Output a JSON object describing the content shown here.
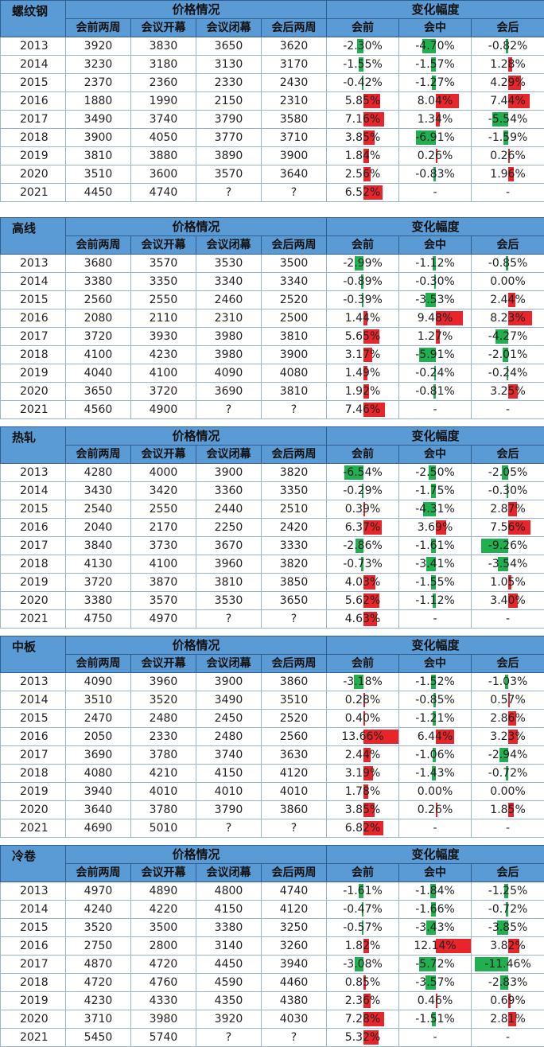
{
  "header_price": "价格情况",
  "header_change": "变化幅度",
  "cols": [
    "会前两周",
    "会议开幕",
    "会议闭幕",
    "会后两周",
    "会前",
    "会中",
    "会后"
  ],
  "colors": {
    "header": "#5b9bd5",
    "positive": "#e8252a",
    "negative": "#21b04f"
  },
  "tables": [
    {
      "name": "螺纹钢",
      "rows": [
        {
          "year": "2013",
          "p": [
            "3920",
            "3830",
            "3650",
            "3620"
          ],
          "c": [
            "-2.30%",
            "-4.70%",
            "-0.82%"
          ],
          "v": [
            -2.3,
            -4.7,
            -0.82
          ]
        },
        {
          "year": "2014",
          "p": [
            "3230",
            "3180",
            "3130",
            "3170"
          ],
          "c": [
            "-1.55%",
            "-1.57%",
            "1.28%"
          ],
          "v": [
            -1.55,
            -1.57,
            1.28
          ]
        },
        {
          "year": "2015",
          "p": [
            "2370",
            "2360",
            "2330",
            "2430"
          ],
          "c": [
            "-0.42%",
            "-1.27%",
            "4.29%"
          ],
          "v": [
            -0.42,
            -1.27,
            4.29
          ]
        },
        {
          "year": "2016",
          "p": [
            "1880",
            "1990",
            "2150",
            "2310"
          ],
          "c": [
            "5.85%",
            "8.04%",
            "7.44%"
          ],
          "v": [
            5.85,
            8.04,
            7.44
          ]
        },
        {
          "year": "2017",
          "p": [
            "3490",
            "3740",
            "3790",
            "3580"
          ],
          "c": [
            "7.16%",
            "1.34%",
            "-5.54%"
          ],
          "v": [
            7.16,
            1.34,
            -5.54
          ]
        },
        {
          "year": "2018",
          "p": [
            "3900",
            "4050",
            "3770",
            "3710"
          ],
          "c": [
            "3.85%",
            "-6.91%",
            "-1.59%"
          ],
          "v": [
            3.85,
            -6.91,
            -1.59
          ]
        },
        {
          "year": "2019",
          "p": [
            "3810",
            "3880",
            "3890",
            "3900"
          ],
          "c": [
            "1.84%",
            "0.26%",
            "0.26%"
          ],
          "v": [
            1.84,
            0.26,
            0.26
          ]
        },
        {
          "year": "2020",
          "p": [
            "3510",
            "3600",
            "3570",
            "3640"
          ],
          "c": [
            "2.56%",
            "-0.83%",
            "1.96%"
          ],
          "v": [
            2.56,
            -0.83,
            1.96
          ]
        },
        {
          "year": "2021",
          "p": [
            "4450",
            "4740",
            "?",
            "?"
          ],
          "c": [
            "6.52%",
            "-",
            "-"
          ],
          "v": [
            6.52,
            null,
            null
          ]
        }
      ]
    },
    {
      "name": "高线",
      "rows": [
        {
          "year": "2013",
          "p": [
            "3680",
            "3570",
            "3530",
            "3500"
          ],
          "c": [
            "-2.99%",
            "-1.12%",
            "-0.85%"
          ],
          "v": [
            -2.99,
            -1.12,
            -0.85
          ]
        },
        {
          "year": "2014",
          "p": [
            "3380",
            "3350",
            "3340",
            "3340"
          ],
          "c": [
            "-0.89%",
            "-0.30%",
            "0.00%"
          ],
          "v": [
            -0.89,
            -0.3,
            0.0
          ]
        },
        {
          "year": "2015",
          "p": [
            "2560",
            "2550",
            "2460",
            "2520"
          ],
          "c": [
            "-0.39%",
            "-3.53%",
            "2.44%"
          ],
          "v": [
            -0.39,
            -3.53,
            2.44
          ]
        },
        {
          "year": "2016",
          "p": [
            "2080",
            "2110",
            "2310",
            "2500"
          ],
          "c": [
            "1.44%",
            "9.48%",
            "8.23%"
          ],
          "v": [
            1.44,
            9.48,
            8.23
          ]
        },
        {
          "year": "2017",
          "p": [
            "3720",
            "3930",
            "3980",
            "3810"
          ],
          "c": [
            "5.65%",
            "1.27%",
            "-4.27%"
          ],
          "v": [
            5.65,
            1.27,
            -4.27
          ]
        },
        {
          "year": "2018",
          "p": [
            "4100",
            "4230",
            "3980",
            "3900"
          ],
          "c": [
            "3.17%",
            "-5.91%",
            "-2.01%"
          ],
          "v": [
            3.17,
            -5.91,
            -2.01
          ]
        },
        {
          "year": "2019",
          "p": [
            "4040",
            "4100",
            "4090",
            "4080"
          ],
          "c": [
            "1.49%",
            "-0.24%",
            "-0.24%"
          ],
          "v": [
            1.49,
            -0.24,
            -0.24
          ]
        },
        {
          "year": "2020",
          "p": [
            "3650",
            "3720",
            "3690",
            "3810"
          ],
          "c": [
            "1.92%",
            "-0.81%",
            "3.25%"
          ],
          "v": [
            1.92,
            -0.81,
            3.25
          ]
        },
        {
          "year": "2021",
          "p": [
            "4560",
            "4900",
            "?",
            "?"
          ],
          "c": [
            "7.46%",
            "-",
            "-"
          ],
          "v": [
            7.46,
            null,
            null
          ]
        }
      ]
    },
    {
      "name": "热轧",
      "rows": [
        {
          "year": "2013",
          "p": [
            "4280",
            "4000",
            "3900",
            "3820"
          ],
          "c": [
            "-6.54%",
            "-2.50%",
            "-2.05%"
          ],
          "v": [
            -6.54,
            -2.5,
            -2.05
          ]
        },
        {
          "year": "2014",
          "p": [
            "3430",
            "3420",
            "3360",
            "3350"
          ],
          "c": [
            "-0.29%",
            "-1.75%",
            "-0.30%"
          ],
          "v": [
            -0.29,
            -1.75,
            -0.3
          ]
        },
        {
          "year": "2015",
          "p": [
            "2540",
            "2550",
            "2440",
            "2510"
          ],
          "c": [
            "0.39%",
            "-4.31%",
            "2.87%"
          ],
          "v": [
            0.39,
            -4.31,
            2.87
          ]
        },
        {
          "year": "2016",
          "p": [
            "2040",
            "2170",
            "2250",
            "2420"
          ],
          "c": [
            "6.37%",
            "3.69%",
            "7.56%"
          ],
          "v": [
            6.37,
            3.69,
            7.56
          ]
        },
        {
          "year": "2017",
          "p": [
            "3840",
            "3730",
            "3670",
            "3330"
          ],
          "c": [
            "-2.86%",
            "-1.61%",
            "-9.26%"
          ],
          "v": [
            -2.86,
            -1.61,
            -9.26
          ]
        },
        {
          "year": "2018",
          "p": [
            "4130",
            "4100",
            "3960",
            "3820"
          ],
          "c": [
            "-0.73%",
            "-3.41%",
            "-3.54%"
          ],
          "v": [
            -0.73,
            -3.41,
            -3.54
          ]
        },
        {
          "year": "2019",
          "p": [
            "3720",
            "3870",
            "3810",
            "3850"
          ],
          "c": [
            "4.03%",
            "-1.55%",
            "1.05%"
          ],
          "v": [
            4.03,
            -1.55,
            1.05
          ]
        },
        {
          "year": "2020",
          "p": [
            "3380",
            "3570",
            "3530",
            "3650"
          ],
          "c": [
            "5.62%",
            "-1.12%",
            "3.40%"
          ],
          "v": [
            5.62,
            -1.12,
            3.4
          ]
        },
        {
          "year": "2021",
          "p": [
            "4750",
            "4970",
            "?",
            "?"
          ],
          "c": [
            "4.63%",
            "-",
            "-"
          ],
          "v": [
            4.63,
            null,
            null
          ]
        }
      ]
    },
    {
      "name": "中板",
      "rows": [
        {
          "year": "2013",
          "p": [
            "4090",
            "3960",
            "3900",
            "3860"
          ],
          "c": [
            "-3.18%",
            "-1.52%",
            "-1.03%"
          ],
          "v": [
            -3.18,
            -1.52,
            -1.03
          ]
        },
        {
          "year": "2014",
          "p": [
            "3510",
            "3520",
            "3490",
            "3510"
          ],
          "c": [
            "0.28%",
            "-0.85%",
            "0.57%"
          ],
          "v": [
            0.28,
            -0.85,
            0.57
          ]
        },
        {
          "year": "2015",
          "p": [
            "2470",
            "2480",
            "2450",
            "2520"
          ],
          "c": [
            "0.40%",
            "-1.21%",
            "2.86%"
          ],
          "v": [
            0.4,
            -1.21,
            2.86
          ]
        },
        {
          "year": "2016",
          "p": [
            "2050",
            "2330",
            "2480",
            "2560"
          ],
          "c": [
            "13.66%",
            "6.44%",
            "3.23%"
          ],
          "v": [
            13.66,
            6.44,
            3.23
          ]
        },
        {
          "year": "2017",
          "p": [
            "3690",
            "3780",
            "3740",
            "3630"
          ],
          "c": [
            "2.44%",
            "-1.06%",
            "-2.94%"
          ],
          "v": [
            2.44,
            -1.06,
            -2.94
          ]
        },
        {
          "year": "2018",
          "p": [
            "4080",
            "4210",
            "4150",
            "4120"
          ],
          "c": [
            "3.19%",
            "-1.43%",
            "-0.72%"
          ],
          "v": [
            3.19,
            -1.43,
            -0.72
          ]
        },
        {
          "year": "2019",
          "p": [
            "3940",
            "4010",
            "4010",
            "4010"
          ],
          "c": [
            "1.78%",
            "0.00%",
            "0.00%"
          ],
          "v": [
            1.78,
            0.0,
            0.0
          ]
        },
        {
          "year": "2020",
          "p": [
            "3640",
            "3780",
            "3790",
            "3860"
          ],
          "c": [
            "3.85%",
            "0.26%",
            "1.85%"
          ],
          "v": [
            3.85,
            0.26,
            1.85
          ]
        },
        {
          "year": "2021",
          "p": [
            "4690",
            "5010",
            "?",
            "?"
          ],
          "c": [
            "6.82%",
            "-",
            "-"
          ],
          "v": [
            6.82,
            null,
            null
          ]
        }
      ]
    },
    {
      "name": "冷卷",
      "rows": [
        {
          "year": "2013",
          "p": [
            "4970",
            "4890",
            "4800",
            "4740"
          ],
          "c": [
            "-1.61%",
            "-1.84%",
            "-1.25%"
          ],
          "v": [
            -1.61,
            -1.84,
            -1.25
          ]
        },
        {
          "year": "2014",
          "p": [
            "4240",
            "4220",
            "4150",
            "4120"
          ],
          "c": [
            "-0.47%",
            "-1.66%",
            "-0.72%"
          ],
          "v": [
            -0.47,
            -1.66,
            -0.72
          ]
        },
        {
          "year": "2015",
          "p": [
            "3520",
            "3500",
            "3380",
            "3250"
          ],
          "c": [
            "-0.57%",
            "-3.43%",
            "-3.85%"
          ],
          "v": [
            -0.57,
            -3.43,
            -3.85
          ]
        },
        {
          "year": "2016",
          "p": [
            "2750",
            "2800",
            "3140",
            "3260"
          ],
          "c": [
            "1.82%",
            "12.14%",
            "3.82%"
          ],
          "v": [
            1.82,
            12.14,
            3.82
          ]
        },
        {
          "year": "2017",
          "p": [
            "4870",
            "4720",
            "4450",
            "3940"
          ],
          "c": [
            "-3.08%",
            "-5.72%",
            "-11.46%"
          ],
          "v": [
            -3.08,
            -5.72,
            -11.46
          ]
        },
        {
          "year": "2018",
          "p": [
            "4720",
            "4760",
            "4590",
            "4460"
          ],
          "c": [
            "0.85%",
            "-3.57%",
            "-2.83%"
          ],
          "v": [
            0.85,
            -3.57,
            -2.83
          ]
        },
        {
          "year": "2019",
          "p": [
            "4230",
            "4330",
            "4350",
            "4380"
          ],
          "c": [
            "2.36%",
            "0.46%",
            "0.69%"
          ],
          "v": [
            2.36,
            0.46,
            0.69
          ]
        },
        {
          "year": "2020",
          "p": [
            "3710",
            "3980",
            "3920",
            "4030"
          ],
          "c": [
            "7.28%",
            "-1.51%",
            "2.81%"
          ],
          "v": [
            7.28,
            -1.51,
            2.81
          ]
        },
        {
          "year": "2021",
          "p": [
            "5450",
            "5740",
            "?",
            "?"
          ],
          "c": [
            "5.32%",
            "-",
            "-"
          ],
          "v": [
            5.32,
            null,
            null
          ]
        }
      ]
    }
  ]
}
